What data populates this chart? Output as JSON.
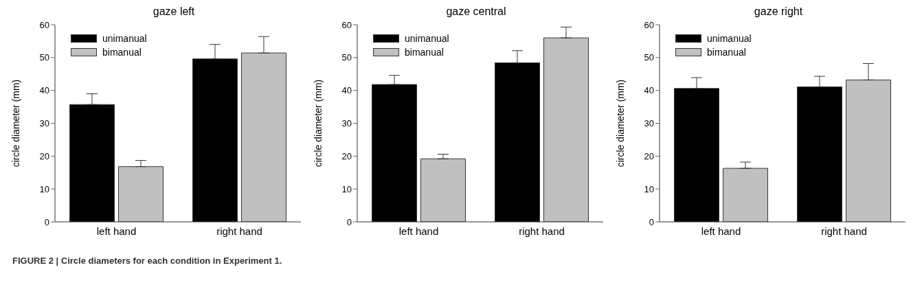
{
  "chart_data": [
    {
      "type": "bar",
      "title": "gaze left",
      "ylabel": "circle diameter (mm)",
      "categories": [
        "left hand",
        "right hand"
      ],
      "ylim": [
        0,
        60
      ],
      "yticks": [
        0,
        10,
        20,
        30,
        40,
        50,
        60
      ],
      "legend": "top left",
      "grid": false,
      "series": [
        {
          "name": "unimanual",
          "color": "#000000",
          "values": [
            35.7,
            49.6
          ],
          "errors": [
            [
              35.7,
              39.0
            ],
            [
              49.6,
              54.0
            ]
          ]
        },
        {
          "name": "bimanual",
          "color": "#c0c0c0",
          "values": [
            16.8,
            51.4
          ],
          "errors": [
            [
              16.8,
              18.7
            ],
            [
              51.4,
              56.4
            ]
          ]
        }
      ],
      "annotations": [
        "FIGURE 2 | Circle diameters for each condition in Experiment 1."
      ]
    },
    {
      "type": "bar",
      "title": "gaze central",
      "ylabel": "circle diameter (mm)",
      "categories": [
        "left hand",
        "right hand"
      ],
      "ylim": [
        0,
        60
      ],
      "yticks": [
        0,
        10,
        20,
        30,
        40,
        50,
        60
      ],
      "legend": "top left",
      "grid": false,
      "series": [
        {
          "name": "unimanual",
          "color": "#000000",
          "values": [
            41.8,
            48.4
          ],
          "errors": [
            [
              41.8,
              44.6
            ],
            [
              48.4,
              52.1
            ]
          ]
        },
        {
          "name": "bimanual",
          "color": "#c0c0c0",
          "values": [
            19.2,
            56.0
          ],
          "errors": [
            [
              19.2,
              20.6
            ],
            [
              56.0,
              59.3
            ]
          ]
        }
      ]
    },
    {
      "type": "bar",
      "title": "gaze right",
      "ylabel": "circle diameter (mm)",
      "categories": [
        "left hand",
        "right hand"
      ],
      "ylim": [
        0,
        60
      ],
      "yticks": [
        0,
        10,
        20,
        30,
        40,
        50,
        60
      ],
      "legend": "top left",
      "grid": false,
      "series": [
        {
          "name": "unimanual",
          "color": "#000000",
          "values": [
            40.6,
            41.1
          ],
          "errors": [
            [
              40.6,
              43.9
            ],
            [
              41.1,
              44.3
            ]
          ]
        },
        {
          "name": "bimanual",
          "color": "#c0c0c0",
          "values": [
            16.3,
            43.2
          ],
          "errors": [
            [
              16.3,
              18.2
            ],
            [
              43.2,
              48.2
            ]
          ]
        }
      ]
    }
  ]
}
